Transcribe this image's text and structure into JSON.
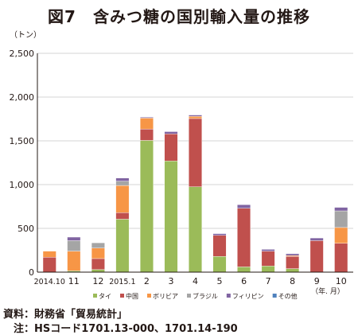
{
  "chart_data": {
    "type": "bar",
    "stacked": true,
    "title": "図7　含みつ糖の国別輸入量の推移",
    "ylabel": "（トン）",
    "xlabel": "（年. 月）",
    "ylim": [
      0,
      2500
    ],
    "yticks": [
      0,
      500,
      1000,
      1500,
      2000,
      2500
    ],
    "ytick_labels": [
      "0",
      "500",
      "1,000",
      "1,500",
      "2,000",
      "2,500"
    ],
    "grid": true,
    "legend_position": "bottom",
    "categories": [
      "2014.10",
      "11",
      "12",
      "2015.1",
      "2",
      "3",
      "4",
      "5",
      "6",
      "7",
      "8",
      "9",
      "10"
    ],
    "series": [
      {
        "name": "タイ",
        "color": "#9bbb59",
        "values": [
          0,
          15,
          30,
          605,
          1505,
          1270,
          975,
          180,
          60,
          70,
          40,
          0,
          0
        ]
      },
      {
        "name": "中国",
        "color": "#c0504d",
        "values": [
          170,
          0,
          125,
          75,
          130,
          310,
          780,
          240,
          670,
          170,
          140,
          360,
          330
        ]
      },
      {
        "name": "ボリビア",
        "color": "#f79646",
        "values": [
          70,
          225,
          120,
          310,
          125,
          0,
          25,
          0,
          0,
          0,
          10,
          0,
          180
        ]
      },
      {
        "name": "ブラジル",
        "color": "#a5a5a5",
        "values": [
          0,
          120,
          60,
          50,
          0,
          0,
          0,
          0,
          0,
          0,
          0,
          0,
          190
        ]
      },
      {
        "name": "フィリピン",
        "color": "#8064a2",
        "values": [
          0,
          40,
          0,
          35,
          10,
          25,
          15,
          20,
          40,
          20,
          20,
          30,
          40
        ]
      },
      {
        "name": "その他",
        "color": "#4f81bd",
        "values": [
          0,
          0,
          0,
          0,
          0,
          0,
          0,
          0,
          0,
          0,
          0,
          0,
          0
        ]
      }
    ]
  },
  "notes": {
    "source": "資料：財務省「貿易統計」",
    "footnote": "　注：HSコード1701.13-000、1701.14-190"
  }
}
